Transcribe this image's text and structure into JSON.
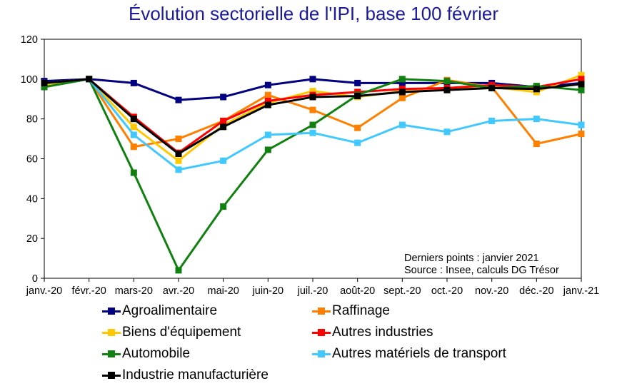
{
  "chart_data": {
    "type": "line",
    "title": "Évolution sectorielle de l'IPI, base 100 février",
    "x": [
      "janv.-20",
      "févr.-20",
      "mars-20",
      "avr.-20",
      "mai-20",
      "juin-20",
      "juil.-20",
      "août-20",
      "sept.-20",
      "oct.-20",
      "nov.-20",
      "déc.-20",
      "janv.-21"
    ],
    "ylim": [
      0,
      120
    ],
    "yticks": [
      0,
      20,
      40,
      60,
      80,
      100,
      120
    ],
    "grid": false,
    "legend_position": "bottom",
    "annotations": [
      "Derniers points : janvier 2021",
      "Source : Insee, calculs DG Trésor"
    ],
    "series": [
      {
        "name": "Agroalimentaire",
        "color": "#000080",
        "values": [
          99,
          100,
          98,
          89.5,
          91,
          97,
          100,
          98,
          98,
          98,
          98,
          96,
          98
        ]
      },
      {
        "name": "Raffinage",
        "color": "#ff8000",
        "values": [
          97,
          100,
          66,
          70,
          79,
          92,
          84.5,
          75.5,
          90.5,
          99.5,
          96,
          67.5,
          72.5
        ]
      },
      {
        "name": "Biens d'équipement",
        "color": "#ffc800",
        "values": [
          97,
          100,
          76,
          59,
          77,
          88,
          94,
          91,
          94,
          94.5,
          96,
          93.5,
          102
        ]
      },
      {
        "name": "Autres industries",
        "color": "#ff0000",
        "values": [
          98,
          100,
          81,
          63,
          79,
          89,
          92,
          93.5,
          95,
          95.5,
          97,
          96,
          100
        ]
      },
      {
        "name": "Automobile",
        "color": "#108010",
        "values": [
          96,
          100,
          53,
          4,
          36,
          64.5,
          77,
          92,
          100,
          99,
          95.5,
          96.5,
          94.5
        ]
      },
      {
        "name": "Autres matériels de transport",
        "color": "#40c8ff",
        "values": [
          98,
          100,
          72,
          54.5,
          59,
          72,
          73,
          68,
          77,
          73.5,
          79,
          80,
          77
        ]
      },
      {
        "name": "Industrie manufacturière",
        "color": "#000000",
        "values": [
          98,
          100,
          80,
          62.5,
          76,
          87,
          91,
          91.5,
          93.5,
          94.5,
          95.5,
          95,
          97.5
        ]
      }
    ]
  }
}
